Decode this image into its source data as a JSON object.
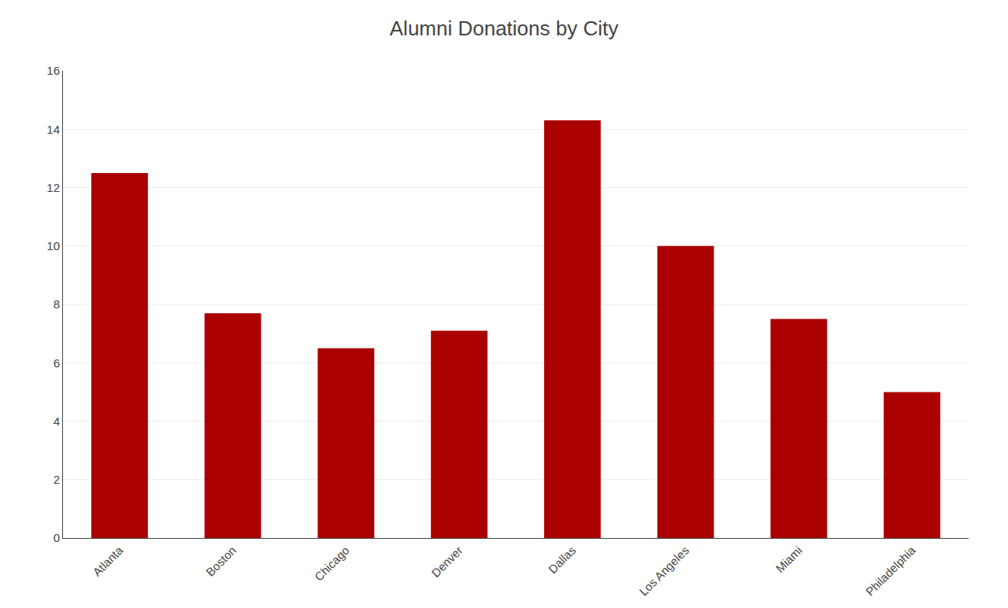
{
  "chart_data": {
    "type": "bar",
    "title": "Alumni Donations by City",
    "categories": [
      "Atlanta",
      "Boston",
      "Chicago",
      "Denver",
      "Dallas",
      "Los Angeles",
      "Miami",
      "Philadelphia"
    ],
    "values": [
      12.5,
      7.7,
      6.5,
      7.1,
      14.3,
      10.0,
      7.5,
      5.0
    ],
    "color": "#AA0000",
    "ylim": [
      0,
      16
    ],
    "yticks": [
      0,
      2,
      4,
      6,
      8,
      10,
      12,
      14,
      16
    ],
    "grid": true
  }
}
